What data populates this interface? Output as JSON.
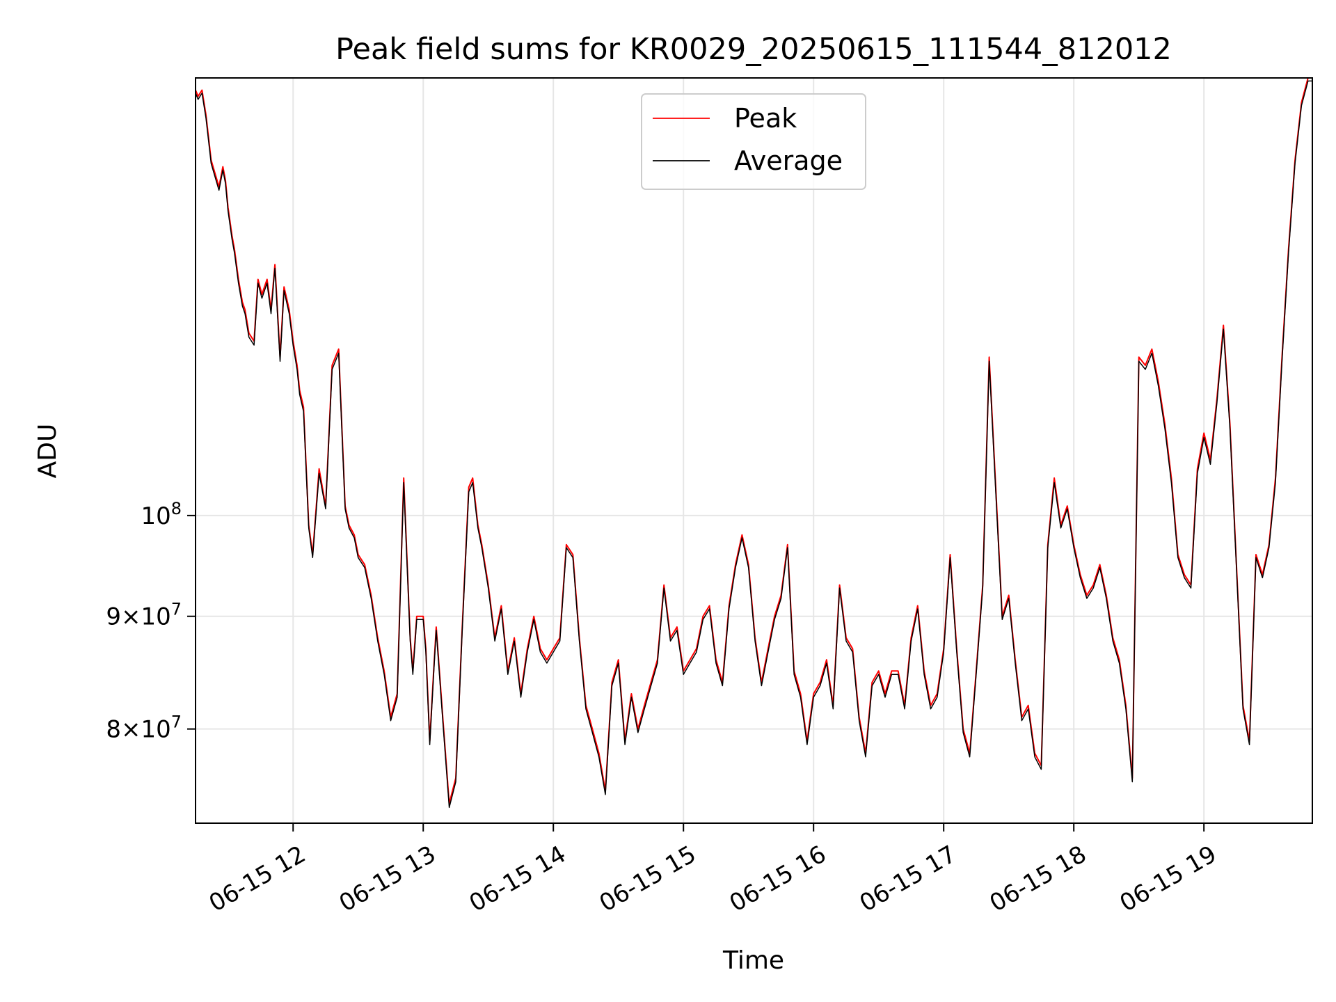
{
  "chart_data": {
    "type": "line",
    "title": "Peak field sums for KR0029_20250615_111544_812012",
    "xlabel": "Time",
    "ylabel": "ADU",
    "y_scale": "log",
    "x_ticks": [
      "06-15 12",
      "06-15 13",
      "06-15 14",
      "06-15 15",
      "06-15 16",
      "06-15 17",
      "06-15 18",
      "06-15 19"
    ],
    "y_ticks": [
      {
        "value": 80000000,
        "mantissa": "8",
        "base": "10",
        "exp": "7"
      },
      {
        "value": 90000000,
        "mantissa": "9",
        "base": "10",
        "exp": "7"
      },
      {
        "value": 100000000,
        "mantissa": "",
        "base": "10",
        "exp": "8"
      }
    ],
    "xlim": [
      "2025-06-15 11:15",
      "2025-06-15 19:50"
    ],
    "ylim": [
      72500000,
      158000000
    ],
    "grid": true,
    "legend": "top-center",
    "x_unit": "hours since 2025-06-15 00:00",
    "series": [
      {
        "name": "Peak",
        "color": "#ff0000",
        "x": [
          11.25,
          11.27,
          11.3,
          11.33,
          11.37,
          11.4,
          11.43,
          11.46,
          11.48,
          11.5,
          11.53,
          11.55,
          11.58,
          11.61,
          11.63,
          11.66,
          11.7,
          11.73,
          11.76,
          11.8,
          11.83,
          11.86,
          11.9,
          11.93,
          11.97,
          12.0,
          12.03,
          12.05,
          12.08,
          12.12,
          12.15,
          12.2,
          12.25,
          12.3,
          12.35,
          12.4,
          12.43,
          12.47,
          12.5,
          12.55,
          12.6,
          12.65,
          12.7,
          12.75,
          12.8,
          12.85,
          12.9,
          12.92,
          12.95,
          13.0,
          13.02,
          13.05,
          13.08,
          13.1,
          13.15,
          13.2,
          13.25,
          13.3,
          13.35,
          13.38,
          13.42,
          13.45,
          13.5,
          13.55,
          13.6,
          13.65,
          13.7,
          13.75,
          13.8,
          13.85,
          13.9,
          13.95,
          14.0,
          14.05,
          14.1,
          14.15,
          14.2,
          14.25,
          14.3,
          14.35,
          14.4,
          14.45,
          14.5,
          14.55,
          14.6,
          14.65,
          14.7,
          14.75,
          14.8,
          14.85,
          14.9,
          14.95,
          15.0,
          15.05,
          15.1,
          15.15,
          15.2,
          15.25,
          15.3,
          15.35,
          15.4,
          15.45,
          15.5,
          15.55,
          15.6,
          15.65,
          15.7,
          15.75,
          15.8,
          15.85,
          15.9,
          15.95,
          16.0,
          16.05,
          16.1,
          16.15,
          16.2,
          16.25,
          16.3,
          16.35,
          16.4,
          16.45,
          16.5,
          16.55,
          16.6,
          16.65,
          16.7,
          16.75,
          16.8,
          16.85,
          16.9,
          16.95,
          17.0,
          17.05,
          17.1,
          17.15,
          17.2,
          17.25,
          17.3,
          17.35,
          17.4,
          17.45,
          17.5,
          17.55,
          17.6,
          17.65,
          17.7,
          17.75,
          17.8,
          17.85,
          17.9,
          17.95,
          18.0,
          18.05,
          18.1,
          18.15,
          18.2,
          18.25,
          18.3,
          18.35,
          18.4,
          18.45,
          18.5,
          18.55,
          18.6,
          18.65,
          18.7,
          18.75,
          18.8,
          18.85,
          18.9,
          18.95,
          19.0,
          19.05,
          19.1,
          19.15,
          19.2,
          19.25,
          19.3,
          19.35,
          19.4,
          19.45,
          19.5,
          19.55,
          19.6,
          19.65,
          19.7,
          19.75,
          19.8,
          19.83
        ],
        "y": [
          156000000,
          155000000,
          156000000,
          152000000,
          145000000,
          143000000,
          141000000,
          144000000,
          142000000,
          138000000,
          134000000,
          132000000,
          128000000,
          125000000,
          124000000,
          121000000,
          120000000,
          128000000,
          126000000,
          128000000,
          124000000,
          130000000,
          118000000,
          127000000,
          124000000,
          120000000,
          117000000,
          114000000,
          112000000,
          99000000,
          96000000,
          105000000,
          101000000,
          117000000,
          119000000,
          101000000,
          99000000,
          98000000,
          96000000,
          95000000,
          92000000,
          88000000,
          85000000,
          81000000,
          83000000,
          104000000,
          88000000,
          85000000,
          90000000,
          90000000,
          87000000,
          79000000,
          85000000,
          89000000,
          81000000,
          74000000,
          76000000,
          89000000,
          103000000,
          104000000,
          99000000,
          97000000,
          93000000,
          88000000,
          91000000,
          85000000,
          88000000,
          83000000,
          87000000,
          90000000,
          87000000,
          86000000,
          87000000,
          88000000,
          97000000,
          96000000,
          88000000,
          82000000,
          80000000,
          78000000,
          75000000,
          84000000,
          86000000,
          79000000,
          83000000,
          80000000,
          82000000,
          84000000,
          86000000,
          93000000,
          88000000,
          89000000,
          85000000,
          86000000,
          87000000,
          90000000,
          91000000,
          86000000,
          84000000,
          91000000,
          95000000,
          98000000,
          95000000,
          88000000,
          84000000,
          87000000,
          90000000,
          92000000,
          97000000,
          85000000,
          83000000,
          79000000,
          83000000,
          84000000,
          86000000,
          82000000,
          93000000,
          88000000,
          87000000,
          81000000,
          78000000,
          84000000,
          85000000,
          83000000,
          85000000,
          85000000,
          82000000,
          88000000,
          91000000,
          85000000,
          82000000,
          83000000,
          87000000,
          96000000,
          87000000,
          80000000,
          78000000,
          85000000,
          93000000,
          118000000,
          103000000,
          90000000,
          92000000,
          86000000,
          81000000,
          82000000,
          78000000,
          77000000,
          97000000,
          104000000,
          99000000,
          101000000,
          97000000,
          94000000,
          92000000,
          93000000,
          95000000,
          92000000,
          88000000,
          86000000,
          82000000,
          76000000,
          118000000,
          117000000,
          119000000,
          115000000,
          110000000,
          104000000,
          96000000,
          94000000,
          93000000,
          105000000,
          109000000,
          106000000,
          113000000,
          122000000,
          110000000,
          95000000,
          82000000,
          79000000,
          96000000,
          94000000,
          97000000,
          104000000,
          118000000,
          132000000,
          145000000,
          154000000,
          158000000,
          158000000
        ]
      },
      {
        "name": "Average",
        "color": "#000000",
        "x": [
          11.25,
          11.27,
          11.3,
          11.33,
          11.37,
          11.4,
          11.43,
          11.46,
          11.48,
          11.5,
          11.53,
          11.55,
          11.58,
          11.61,
          11.63,
          11.66,
          11.7,
          11.73,
          11.76,
          11.8,
          11.83,
          11.86,
          11.9,
          11.93,
          11.97,
          12.0,
          12.03,
          12.05,
          12.08,
          12.12,
          12.15,
          12.2,
          12.25,
          12.3,
          12.35,
          12.4,
          12.43,
          12.47,
          12.5,
          12.55,
          12.6,
          12.65,
          12.7,
          12.75,
          12.8,
          12.85,
          12.9,
          12.92,
          12.95,
          13.0,
          13.02,
          13.05,
          13.08,
          13.1,
          13.15,
          13.2,
          13.25,
          13.3,
          13.35,
          13.38,
          13.42,
          13.45,
          13.5,
          13.55,
          13.6,
          13.65,
          13.7,
          13.75,
          13.8,
          13.85,
          13.9,
          13.95,
          14.0,
          14.05,
          14.1,
          14.15,
          14.2,
          14.25,
          14.3,
          14.35,
          14.4,
          14.45,
          14.5,
          14.55,
          14.6,
          14.65,
          14.7,
          14.75,
          14.8,
          14.85,
          14.9,
          14.95,
          15.0,
          15.05,
          15.1,
          15.15,
          15.2,
          15.25,
          15.3,
          15.35,
          15.4,
          15.45,
          15.5,
          15.55,
          15.6,
          15.65,
          15.7,
          15.75,
          15.8,
          15.85,
          15.9,
          15.95,
          16.0,
          16.05,
          16.1,
          16.15,
          16.2,
          16.25,
          16.3,
          16.35,
          16.4,
          16.45,
          16.5,
          16.55,
          16.6,
          16.65,
          16.7,
          16.75,
          16.8,
          16.85,
          16.9,
          16.95,
          17.0,
          17.05,
          17.1,
          17.15,
          17.2,
          17.25,
          17.3,
          17.35,
          17.4,
          17.45,
          17.5,
          17.55,
          17.6,
          17.65,
          17.7,
          17.75,
          17.8,
          17.85,
          17.9,
          17.95,
          18.0,
          18.05,
          18.1,
          18.15,
          18.2,
          18.25,
          18.3,
          18.35,
          18.4,
          18.45,
          18.5,
          18.55,
          18.6,
          18.65,
          18.7,
          18.75,
          18.8,
          18.85,
          18.9,
          18.95,
          19.0,
          19.05,
          19.1,
          19.15,
          19.2,
          19.25,
          19.3,
          19.35,
          19.4,
          19.45,
          19.5,
          19.55,
          19.6,
          19.65,
          19.7,
          19.75,
          19.8,
          19.83
        ],
        "y": [
          155500000,
          154500000,
          155500000,
          151500000,
          144500000,
          142500000,
          140500000,
          143500000,
          141500000,
          137500000,
          133500000,
          131500000,
          127500000,
          124500000,
          123500000,
          120500000,
          119500000,
          127500000,
          125500000,
          127500000,
          123500000,
          129500000,
          117500000,
          126500000,
          123500000,
          119500000,
          116500000,
          113500000,
          111500000,
          98700000,
          95700000,
          104500000,
          100700000,
          116500000,
          118500000,
          100700000,
          98700000,
          97700000,
          95700000,
          94700000,
          91700000,
          87700000,
          84700000,
          80700000,
          82700000,
          103500000,
          87700000,
          84700000,
          89700000,
          89700000,
          86700000,
          78700000,
          84700000,
          88700000,
          80700000,
          73700000,
          75700000,
          88700000,
          102500000,
          103500000,
          98700000,
          96700000,
          92700000,
          87700000,
          90700000,
          84700000,
          87700000,
          82700000,
          86700000,
          89700000,
          86700000,
          85700000,
          86700000,
          87700000,
          96700000,
          95700000,
          87700000,
          81700000,
          79700000,
          77700000,
          74700000,
          83700000,
          85700000,
          78700000,
          82700000,
          79700000,
          81700000,
          83700000,
          85700000,
          92700000,
          87700000,
          88700000,
          84700000,
          85700000,
          86700000,
          89700000,
          90700000,
          85700000,
          83700000,
          90700000,
          94700000,
          97700000,
          94700000,
          87700000,
          83700000,
          86700000,
          89700000,
          91700000,
          96700000,
          84700000,
          82700000,
          78700000,
          82700000,
          83700000,
          85700000,
          81700000,
          92700000,
          87700000,
          86700000,
          80700000,
          77700000,
          83700000,
          84700000,
          82700000,
          84700000,
          84700000,
          81700000,
          87700000,
          90700000,
          84700000,
          81700000,
          82700000,
          86700000,
          95700000,
          86700000,
          79700000,
          77700000,
          84700000,
          92700000,
          117500000,
          102500000,
          89700000,
          91700000,
          85700000,
          80700000,
          81700000,
          77700000,
          76700000,
          96700000,
          103500000,
          98700000,
          100700000,
          96700000,
          93700000,
          91700000,
          92700000,
          94700000,
          91700000,
          87700000,
          85700000,
          81700000,
          75700000,
          117500000,
          116500000,
          118500000,
          114500000,
          109500000,
          103500000,
          95700000,
          93700000,
          92700000,
          104500000,
          108500000,
          105500000,
          112500000,
          121500000,
          109500000,
          94700000,
          81700000,
          78700000,
          95700000,
          93700000,
          96700000,
          103500000,
          117500000,
          131500000,
          144500000,
          153500000,
          157500000,
          157500000
        ]
      }
    ]
  }
}
